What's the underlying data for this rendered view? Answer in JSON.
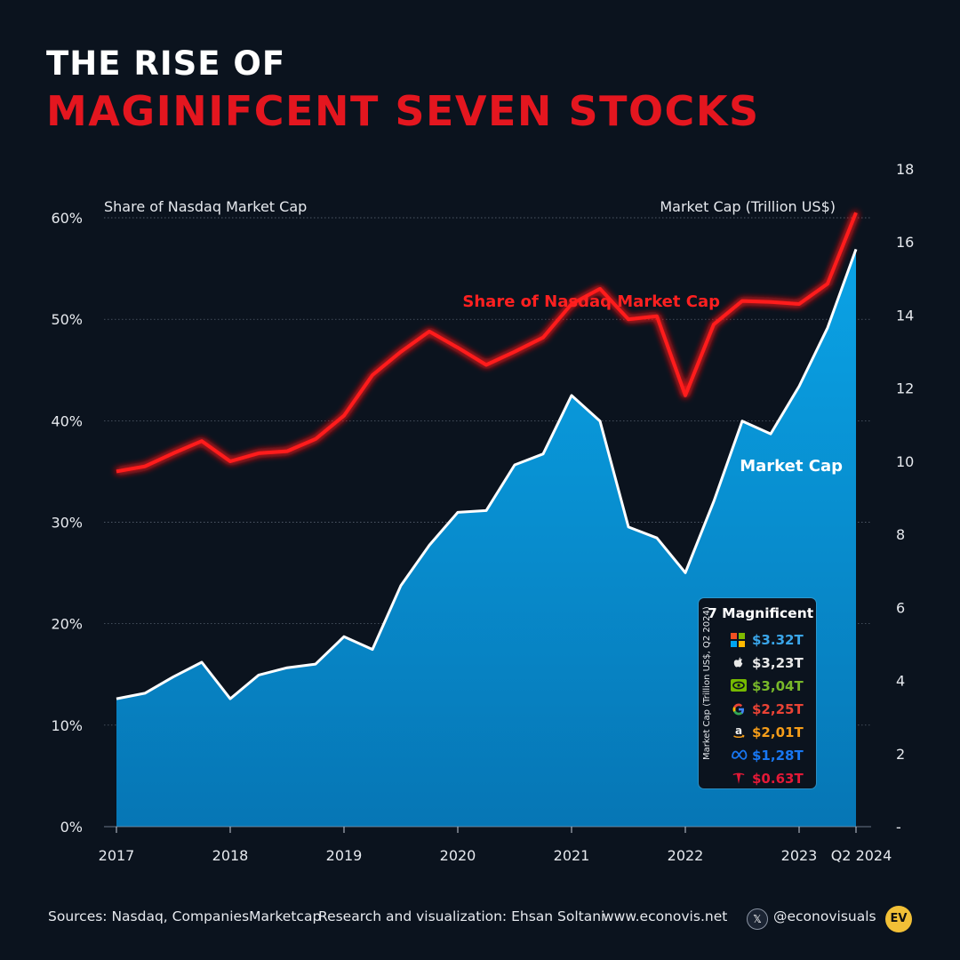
{
  "header": {
    "title_line1": "THE RISE OF",
    "title_line2": "MAGINIFCENT SEVEN STOCKS"
  },
  "colors": {
    "background": "#0b131e",
    "share_line": "#ff1a1a",
    "area_fill_top": "#0a9fe0",
    "area_fill_bottom": "#0679b8",
    "title_accent": "#e4161f"
  },
  "chart_data": {
    "type": "line",
    "left_axis_label": "Share of Nasdaq Market Cap",
    "right_axis_label": "Market Cap (Trillion US$)",
    "share_series_label": "Share of Nasdaq Market Cap",
    "marketcap_series_label": "Market Cap",
    "left_ticks": [
      "0%",
      "10%",
      "20%",
      "30%",
      "40%",
      "50%",
      "60%"
    ],
    "right_ticks": [
      "-",
      "2",
      "4",
      "6",
      "8",
      "10",
      "12",
      "14",
      "16",
      "18"
    ],
    "x_labels": [
      {
        "label": "2017",
        "x": 0
      },
      {
        "label": "2018",
        "x": 4
      },
      {
        "label": "2019",
        "x": 8
      },
      {
        "label": "2020",
        "x": 12
      },
      {
        "label": "2021",
        "x": 16
      },
      {
        "label": "2022",
        "x": 20
      },
      {
        "label": "2023",
        "x": 24
      },
      {
        "label": "Q2 2024",
        "x": 26
      }
    ],
    "left_ylim": [
      0,
      60
    ],
    "right_ylim": [
      0,
      18
    ],
    "series": [
      {
        "name": "Share of Nasdaq Market Cap",
        "axis": "left",
        "values": [
          35.0,
          35.5,
          36.8,
          38.0,
          36.0,
          36.8,
          37.0,
          38.2,
          40.5,
          44.5,
          46.8,
          48.8,
          47.2,
          45.5,
          46.8,
          48.2,
          51.5,
          53.0,
          50.0,
          50.3,
          42.5,
          49.5,
          51.8,
          51.7,
          51.5,
          53.5,
          60.5
        ]
      },
      {
        "name": "Market Cap",
        "axis": "right",
        "values": [
          3.5,
          3.65,
          4.1,
          4.5,
          3.5,
          4.15,
          4.35,
          4.45,
          5.2,
          4.85,
          6.6,
          7.7,
          8.6,
          8.65,
          9.9,
          10.2,
          11.8,
          11.1,
          8.2,
          7.9,
          6.95,
          8.9,
          11.1,
          10.75,
          12.05,
          13.65,
          15.8
        ]
      }
    ],
    "legend": {
      "title": "7 Magnificent",
      "side_label": "Market Cap (Trillion US$, Q2 2024)",
      "items": [
        {
          "company_icon": "microsoft-icon",
          "value": "$3.32T",
          "color": "#3aa6ea"
        },
        {
          "company_icon": "apple-icon",
          "value": "$3,23T",
          "color": "#e8e8e8"
        },
        {
          "company_icon": "nvidia-icon",
          "value": "$3,04T",
          "color": "#78b82a"
        },
        {
          "company_icon": "google-icon",
          "value": "$2,25T",
          "color": "#ea4335"
        },
        {
          "company_icon": "amazon-icon",
          "value": "$2,01T",
          "color": "#f59d19"
        },
        {
          "company_icon": "meta-icon",
          "value": "$1,28T",
          "color": "#1877f2"
        },
        {
          "company_icon": "tesla-icon",
          "value": "$0.63T",
          "color": "#e31937"
        }
      ]
    }
  },
  "footer": {
    "sources": "Sources: Nasdaq, CompaniesMarketcap",
    "credit": "Research and visualization: Ehsan Soltani",
    "website": "www.econovis.net",
    "x_glyph": "𝕏",
    "handle": "@econovisuals",
    "logo_text": "EV"
  }
}
